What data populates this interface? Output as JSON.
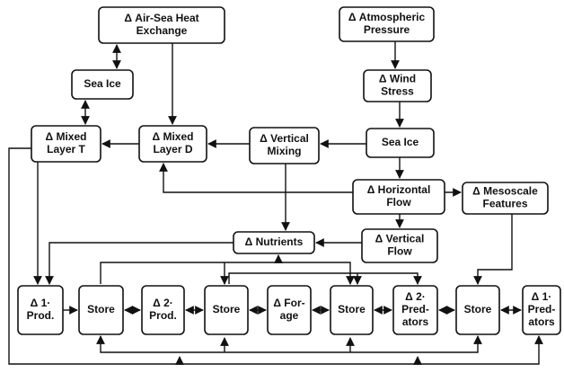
{
  "nodes": [
    {
      "lines": [
        "Δ Air-Sea Heat",
        "Exchange"
      ]
    },
    {
      "lines": [
        "Δ Atmospheric",
        "Pressure"
      ]
    },
    {
      "lines": [
        "Sea Ice"
      ]
    },
    {
      "lines": [
        "Δ Wind",
        "Stress"
      ]
    },
    {
      "lines": [
        "Δ Mixed",
        "Layer T"
      ]
    },
    {
      "lines": [
        "Δ Mixed",
        "Layer D"
      ]
    },
    {
      "lines": [
        "Δ Vertical",
        "Mixing"
      ]
    },
    {
      "lines": [
        "Sea Ice"
      ]
    },
    {
      "lines": [
        "Δ Horizontal",
        "Flow"
      ]
    },
    {
      "lines": [
        "Δ Mesoscale",
        "Features"
      ]
    },
    {
      "lines": [
        "Δ Nutrients"
      ]
    },
    {
      "lines": [
        "Δ Vertical",
        "Flow"
      ]
    },
    {
      "lines": [
        "Δ 1·",
        "Prod."
      ]
    },
    {
      "lines": [
        "Store"
      ]
    },
    {
      "lines": [
        "Δ 2·",
        "Prod."
      ]
    },
    {
      "lines": [
        "Store"
      ]
    },
    {
      "lines": [
        "Δ For-",
        "age"
      ]
    },
    {
      "lines": [
        "Store"
      ]
    },
    {
      "lines": [
        "Δ 2·",
        "Pred-",
        "ators"
      ]
    },
    {
      "lines": [
        "Store"
      ]
    },
    {
      "lines": [
        "Δ 1·",
        "Pred-",
        "ators"
      ]
    }
  ]
}
